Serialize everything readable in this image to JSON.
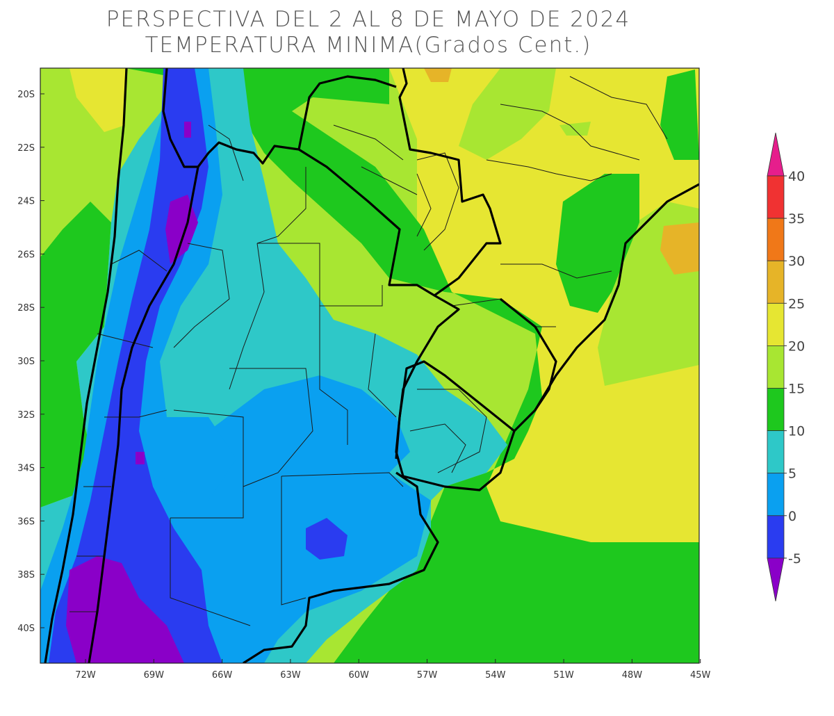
{
  "title": "PERSPECTIVA DEL 2 AL 8 DE MAYO DE 2024",
  "subtitle": "TEMPERATURA MINIMA(Grados Cent.)",
  "latitude_ticks": [
    "20S",
    "22S",
    "24S",
    "26S",
    "28S",
    "30S",
    "32S",
    "34S",
    "36S",
    "38S",
    "40S"
  ],
  "longitude_ticks": [
    "72W",
    "69W",
    "66W",
    "63W",
    "60W",
    "57W",
    "54W",
    "51W",
    "48W",
    "45W"
  ],
  "colorbar": {
    "levels": [
      "-5",
      "0",
      "5",
      "10",
      "15",
      "20",
      "25",
      "30",
      "35",
      "40"
    ],
    "colors": [
      "#8a00c8",
      "#2a3cf0",
      "#0aa0f0",
      "#2ec8c8",
      "#1ec81e",
      "#a8e632",
      "#e6e632",
      "#e6b428",
      "#f07818",
      "#f03232",
      "#e61e8c"
    ]
  }
}
